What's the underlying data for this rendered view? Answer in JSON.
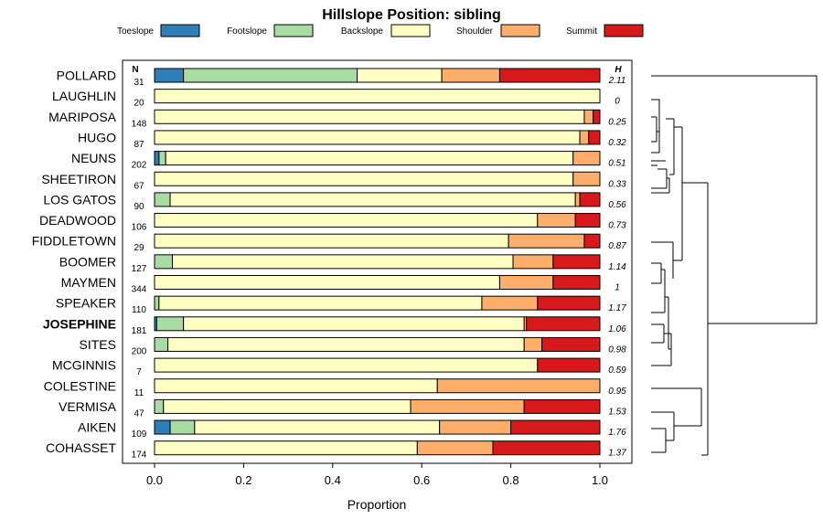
{
  "chart_data": {
    "type": "bar",
    "orientation": "horizontal-stacked",
    "title": "Hillslope Position: sibling",
    "xlabel": "Proportion",
    "xlim": [
      0,
      1
    ],
    "xticks": [
      "0.0",
      "0.2",
      "0.4",
      "0.6",
      "0.8",
      "1.0"
    ],
    "xtick_values": [
      0,
      0.2,
      0.4,
      0.6,
      0.8,
      1.0
    ],
    "n_header": "N",
    "h_header": "H",
    "highlight": "JOSEPHINE",
    "legend": [
      {
        "name": "Toeslope",
        "color": "#2e7fb8"
      },
      {
        "name": "Footslope",
        "color": "#a9dca3"
      },
      {
        "name": "Backslope",
        "color": "#ffffc4"
      },
      {
        "name": "Shoulder",
        "color": "#fdae6b"
      },
      {
        "name": "Summit",
        "color": "#d7191c"
      }
    ],
    "categories": [
      "POLLARD",
      "LAUGHLIN",
      "MARIPOSA",
      "HUGO",
      "NEUNS",
      "SHEETIRON",
      "LOS GATOS",
      "DEADWOOD",
      "FIDDLETOWN",
      "BOOMER",
      "MAYMEN",
      "SPEAKER",
      "JOSEPHINE",
      "SITES",
      "MCGINNIS",
      "COLESTINE",
      "VERMISA",
      "AIKEN",
      "COHASSET"
    ],
    "n": [
      "31",
      "20",
      "148",
      "87",
      "202",
      "67",
      "90",
      "106",
      "29",
      "127",
      "344",
      "110",
      "181",
      "200",
      "7",
      "11",
      "47",
      "109",
      "174"
    ],
    "h": [
      "2.11",
      "0",
      "0.25",
      "0.32",
      "0.51",
      "0.33",
      "0.56",
      "0.73",
      "0.87",
      "1.14",
      "1",
      "1.17",
      "1.06",
      "0.98",
      "0.59",
      "0.95",
      "1.53",
      "1.76",
      "1.37"
    ],
    "series": [
      {
        "name": "Toeslope",
        "values": [
          0.065,
          0,
          0,
          0,
          0.01,
          0,
          0,
          0,
          0,
          0,
          0,
          0,
          0.005,
          0,
          0,
          0,
          0,
          0.035,
          0
        ]
      },
      {
        "name": "Footslope",
        "values": [
          0.39,
          0,
          0,
          0,
          0.015,
          0,
          0.035,
          0,
          0,
          0.04,
          0,
          0.01,
          0.06,
          0.03,
          0,
          0,
          0.02,
          0.055,
          0
        ]
      },
      {
        "name": "Backslope",
        "values": [
          0.19,
          1.0,
          0.965,
          0.955,
          0.915,
          0.94,
          0.91,
          0.86,
          0.795,
          0.765,
          0.775,
          0.725,
          0.765,
          0.8,
          0.86,
          0.635,
          0.555,
          0.55,
          0.59
        ]
      },
      {
        "name": "Shoulder",
        "values": [
          0.13,
          0,
          0.02,
          0.02,
          0.06,
          0.06,
          0.01,
          0.085,
          0.17,
          0.09,
          0.12,
          0.125,
          0.005,
          0.04,
          0,
          0.365,
          0.255,
          0.16,
          0.17
        ]
      },
      {
        "name": "Summit",
        "values": [
          0.225,
          0,
          0.015,
          0.025,
          0,
          0,
          0.045,
          0.055,
          0.035,
          0.105,
          0.105,
          0.14,
          0.165,
          0.13,
          0.14,
          0,
          0.17,
          0.2,
          0.24
        ]
      }
    ]
  }
}
